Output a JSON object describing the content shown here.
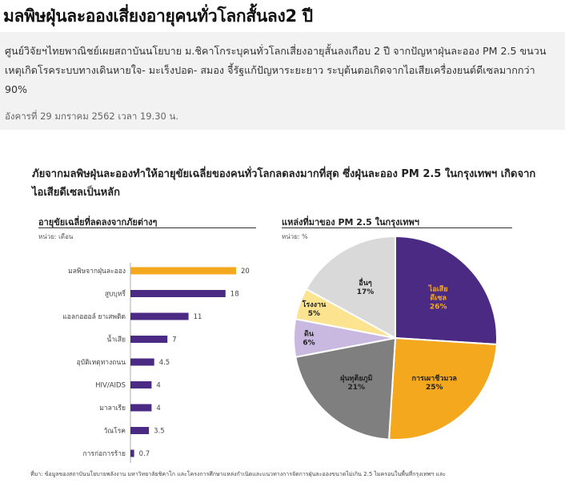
{
  "article": {
    "headline": "มลพิษฝุ่นละอองเสี่ยงอายุคนทั่วโลกสั้นลง2 ปี",
    "lead": "ศูนย์วิจัยฯไทยพาณิชย์เผยสถาบันนโยบาย ม.ชิคาโกระบุคนทั่วโลกเสี่ยงอายุสั้นลงเกือบ 2 ปี จากปัญหาฝุ่นละออง PM 2.5 ขนวนเหตุเกิดโรคระบบทางเดินหายใจ- มะเร็งปอด- สมอง จี้รัฐแก้ปัญหาระยะยาว ระบุต้นตอเกิดจากไอเสียเครื่องยนต์ดีเซลมากกว่า 90%",
    "dateline": "อังคารที่ 29 มกราคม 2562 เวลา 19.30 น."
  },
  "infographic": {
    "title": "ภัยจากมลพิษฝุ่นละอองทำให้อายุขัยเฉลี่ยของคนทั่วโลกลดลงมากที่สุด ซึ่งฝุ่นละออง PM 2.5 ในกรุงเทพฯ เกิดจากไอเสียดีเซลเป็นหลัก",
    "footnote": "ที่มา: ข้อมูลของสถาบันนโยบายพลังงาน มหาวิทยาลัยชิคาโก และโครงการศึกษาแหล่งกำเนิดและแนวทางการจัดการฝุ่นละอองขนาดไม่เกิน 2.5 ไมครอนในพื้นที่กรุงเทพฯ และ"
  },
  "chart_data": [
    {
      "type": "bar",
      "orientation": "horizontal",
      "title": "อายุขัยเฉลี่ยที่ลดลงจากภัยต่างๆ",
      "unit": "หน่วย: เดือน",
      "categories": [
        "มลพิษจากฝุ่นละออง",
        "สูบบุหรี่",
        "แอลกอฮอล์ ยาเสพติด",
        "น้ำเสีย",
        "อุบัติเหตุทางถนน",
        "HIV/AIDS",
        "มาลาเรีย",
        "วัณโรค",
        "การก่อการร้าย"
      ],
      "values": [
        20,
        18,
        11,
        7,
        4.5,
        4,
        4,
        3.5,
        0.7
      ],
      "value_labels": [
        "20",
        "18",
        "11",
        "7",
        "4.5",
        "4",
        "4",
        "3.5",
        "0.7"
      ],
      "colors": [
        "#f4a81d",
        "#4b2a83",
        "#4b2a83",
        "#4b2a83",
        "#4b2a83",
        "#4b2a83",
        "#4b2a83",
        "#4b2a83",
        "#4b2a83"
      ],
      "xlim": [
        0,
        20
      ]
    },
    {
      "type": "pie",
      "title": "แหล่งที่มาของ PM 2.5 ในกรุงเทพฯ",
      "unit": "หน่วย: %",
      "slices": [
        {
          "name": "ไอเสีย ดีเซล",
          "lines": [
            "ไอเสีย",
            "ดีเซล"
          ],
          "value": 26,
          "label": "26%",
          "color": "#4b2a83",
          "text_color": "#f4a81d"
        },
        {
          "name": "การเผาชีวมวล",
          "lines": [
            "การเผาชีวมวล"
          ],
          "value": 25,
          "label": "25%",
          "color": "#f4a81d",
          "text_color": "#222222"
        },
        {
          "name": "ฝุ่นทุติยภูมิ",
          "lines": [
            "ฝุ่นทุติยภูมิ"
          ],
          "value": 21,
          "label": "21%",
          "color": "#7f7f7f",
          "text_color": "#222222"
        },
        {
          "name": "ดิน",
          "lines": [
            "ดิน"
          ],
          "value": 6,
          "label": "6%",
          "color": "#c9b9e0",
          "text_color": "#222222"
        },
        {
          "name": "โรงงาน",
          "lines": [
            "โรงงาน"
          ],
          "value": 5,
          "label": "5%",
          "color": "#fbe38f",
          "text_color": "#222222"
        },
        {
          "name": "อื่นๆ",
          "lines": [
            "อื่นๆ"
          ],
          "value": 17,
          "label": "17%",
          "color": "#d9d9d9",
          "text_color": "#222222"
        }
      ]
    }
  ]
}
